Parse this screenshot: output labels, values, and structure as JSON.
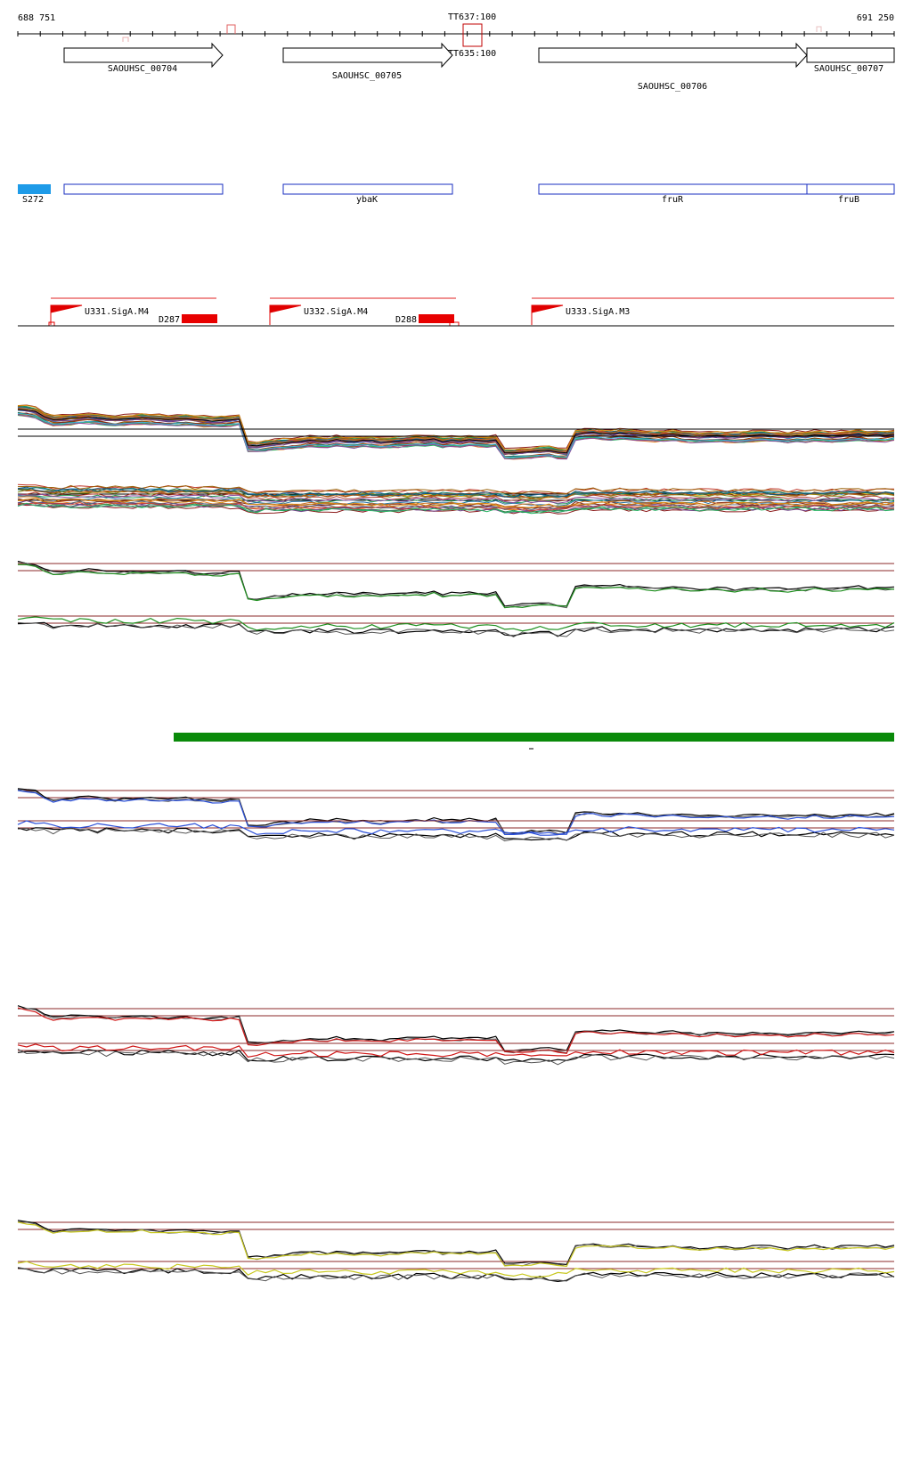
{
  "coordinates": {
    "start": "688 751",
    "end": "691 250"
  },
  "terminators": [
    {
      "label": "TT637:100",
      "color": "#d00000"
    },
    {
      "label": "TT635:100",
      "color": "#d00000"
    }
  ],
  "genes": [
    {
      "label": "SAOUHSC_00704"
    },
    {
      "label": "SAOUHSC_00705"
    },
    {
      "label": "SAOUHSC_00706"
    },
    {
      "label": "SAOUHSC_00707"
    }
  ],
  "annotations": [
    {
      "label": "S272",
      "color": "#1e90ff"
    },
    {
      "label": ""
    },
    {
      "label": "ybaK"
    },
    {
      "label": "fruR"
    },
    {
      "label": "fruB"
    }
  ],
  "promoters": [
    {
      "label": "U331.SigA.M4"
    },
    {
      "label": "U332.SigA.M4"
    },
    {
      "label": "U333.SigA.M3"
    }
  ],
  "elements": [
    {
      "label": "D287"
    },
    {
      "label": "D288"
    }
  ],
  "tracks": {
    "condition_colors": [
      "#1f8f1f",
      "#2a4fd8",
      "#d01818",
      "#c8c820"
    ],
    "profile": [
      0.3,
      0.31,
      0.34,
      0.42,
      0.47,
      0.46,
      0.45,
      0.44,
      0.43,
      0.44,
      0.46,
      0.47,
      0.46,
      0.45,
      0.44,
      0.45,
      0.46,
      0.47,
      0.46,
      0.45,
      0.47,
      0.48,
      0.49,
      0.48,
      0.47,
      0.46,
      0.88,
      0.89,
      0.87,
      0.85,
      0.84,
      0.83,
      0.82,
      0.8,
      0.81,
      0.82,
      0.79,
      0.81,
      0.82,
      0.8,
      0.81,
      0.83,
      0.82,
      0.81,
      0.8,
      0.79,
      0.8,
      0.78,
      0.82,
      0.8,
      0.81,
      0.79,
      0.8,
      0.81,
      0.79,
      1.0,
      1.0,
      0.99,
      0.98,
      0.97,
      0.96,
      0.99,
      1.0,
      0.7,
      0.68,
      0.67,
      0.69,
      0.7,
      0.68,
      0.69,
      0.7,
      0.71,
      0.72,
      0.71,
      0.7,
      0.72,
      0.73,
      0.74,
      0.73,
      0.72,
      0.73,
      0.74,
      0.73,
      0.72,
      0.71,
      0.72,
      0.73,
      0.74,
      0.72,
      0.73,
      0.71,
      0.72,
      0.73,
      0.72,
      0.71,
      0.7,
      0.72,
      0.71,
      0.72,
      0.7
    ]
  }
}
